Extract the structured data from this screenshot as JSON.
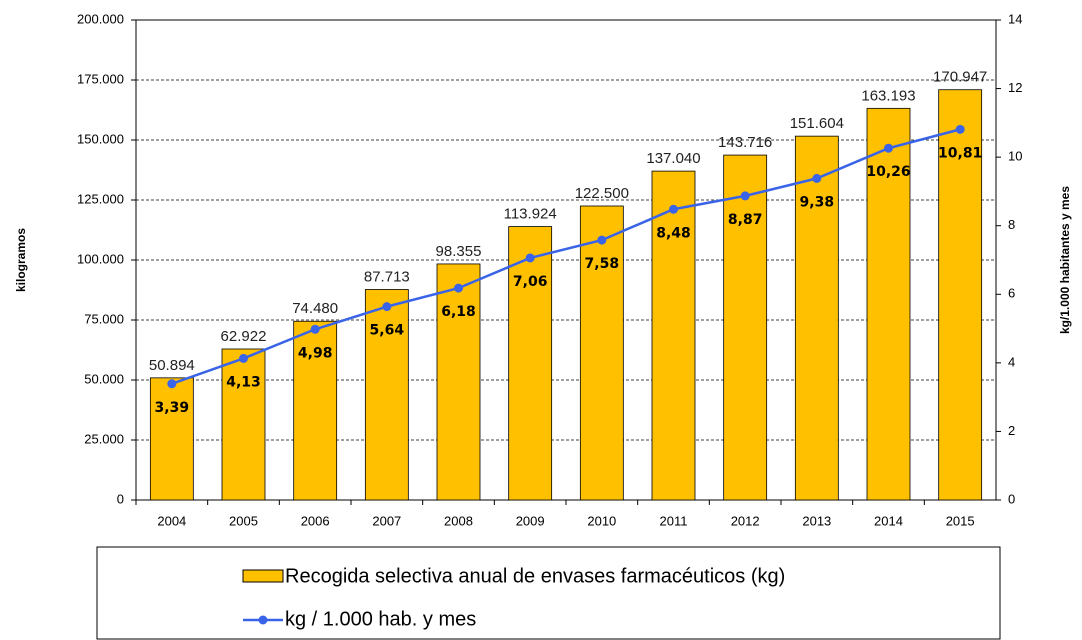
{
  "chart_data": {
    "type": "bar_line",
    "categories": [
      "2004",
      "2005",
      "2006",
      "2007",
      "2008",
      "2009",
      "2010",
      "2011",
      "2012",
      "2013",
      "2014",
      "2015"
    ],
    "series": [
      {
        "name": "Recogida selectiva anual de envases farmacéuticos (kg)",
        "type": "bar",
        "color": "#ffc000",
        "values": [
          50894,
          62922,
          74480,
          87713,
          98355,
          113924,
          122500,
          137040,
          143716,
          151604,
          163193,
          170947
        ],
        "value_labels": [
          "50.894",
          "62.922",
          "74.480",
          "87.713",
          "98.355",
          "113.924",
          "122.500",
          "137.040",
          "143.716",
          "151.604",
          "163.193",
          "170.947"
        ]
      },
      {
        "name": "kg / 1.000 hab. y mes",
        "type": "line",
        "axis": "y2",
        "color": "#3a64e8",
        "values": [
          3.39,
          4.13,
          4.98,
          5.64,
          6.18,
          7.06,
          7.58,
          8.48,
          8.87,
          9.38,
          10.26,
          10.81
        ],
        "value_labels": [
          "3,39",
          "4,13",
          "4,98",
          "5,64",
          "6,18",
          "7,06",
          "7,58",
          "8,48",
          "8,87",
          "9,38",
          "10,26",
          "10,81"
        ]
      }
    ],
    "y_label": "kilogramos",
    "y2_label": "kg/1.000 habitantes  y mes",
    "ylim": [
      0,
      200000
    ],
    "yticks": [
      0,
      {
        "value": 25000,
        "label": "25.000"
      },
      {
        "value": 50000,
        "label": "50.000"
      },
      {
        "value": 75000,
        "label": "75.000"
      },
      {
        "value": 100000,
        "label": "100.000"
      },
      {
        "value": 125000,
        "label": "125.000"
      },
      {
        "value": 150000,
        "label": "150.000"
      },
      {
        "value": 175000,
        "label": "175.000"
      },
      {
        "value": 200000,
        "label": "200.000"
      }
    ],
    "y2lim": [
      0,
      14
    ],
    "y2ticks": [
      0,
      2,
      4,
      6,
      8,
      10,
      12,
      14
    ],
    "grid": true,
    "legend": "bottom"
  }
}
